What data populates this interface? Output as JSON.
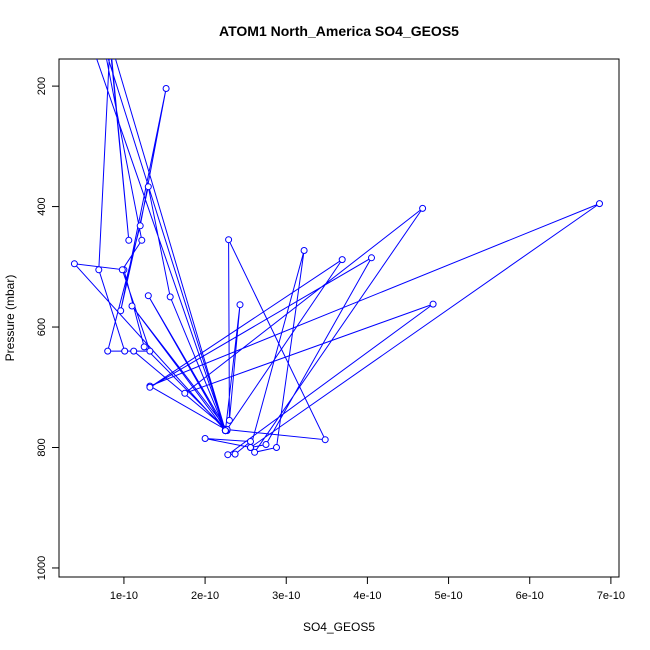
{
  "chart_data": {
    "type": "line",
    "title": "ATOM1 North_America SO4_GEOS5",
    "xlabel": "SO4_GEOS5",
    "ylabel": "Pressure (mbar)",
    "xlim": [
      2e-11,
      7.1e-10
    ],
    "ylim": [
      1015,
      155
    ],
    "y_reversed": true,
    "x_ticks": [
      1e-10,
      2e-10,
      3e-10,
      4e-10,
      5e-10,
      6e-10,
      7e-10
    ],
    "x_tick_labels": [
      "1e-10",
      "2e-10",
      "3e-10",
      "4e-10",
      "5e-10",
      "6e-10",
      "7e-10"
    ],
    "y_ticks": [
      200,
      400,
      600,
      800,
      1000
    ],
    "y_tick_labels": [
      "200",
      "400",
      "600",
      "800",
      "1000"
    ],
    "line_color": "#0000ff",
    "marker": "open-circle",
    "series": [
      {
        "x": [
          6e-11,
          2.25e-10,
          1.3e-10,
          2.27e-10,
          1.25e-10,
          1e-10,
          3.9e-11,
          2.25e-10,
          1.57e-10,
          1.3e-10,
          9.6e-11,
          1.52e-10,
          1.2e-10,
          8e-11,
          1.12e-10,
          2.27e-10,
          2.25e-10,
          2.43e-10,
          2.3e-10,
          2.29e-10,
          3.48e-10,
          2.25e-10,
          1.32e-10,
          6.86e-10,
          2.56e-10,
          2e-10,
          2.56e-10,
          2.37e-10,
          2.28e-10,
          4.81e-10,
          1.75e-10,
          4.68e-10,
          2.61e-10,
          2.88e-10,
          3.22e-10,
          2.56e-10,
          2.75e-10,
          4.05e-10,
          1.32e-10,
          3.69e-10,
          2.27e-10,
          1.1e-10,
          2.25e-10,
          7.5e-11,
          1.22e-10,
          9.8e-11,
          1.32e-10,
          1.01e-10,
          6.9e-11,
          8.3e-11,
          1.06e-10,
          8.2e-11,
          2.25e-10
        ],
        "y": [
          130,
          772,
          548,
          772,
          633,
          505,
          495,
          772,
          550,
          367,
          573,
          204,
          432,
          640,
          640,
          770,
          772,
          563,
          755,
          455,
          787,
          770,
          698,
          395,
          800,
          785,
          790,
          811,
          812,
          562,
          710,
          403,
          808,
          800,
          473,
          800,
          795,
          485,
          700,
          488,
          770,
          565,
          772,
          130,
          456,
          505,
          640,
          640,
          505,
          125,
          456,
          120,
          772
        ]
      }
    ]
  }
}
